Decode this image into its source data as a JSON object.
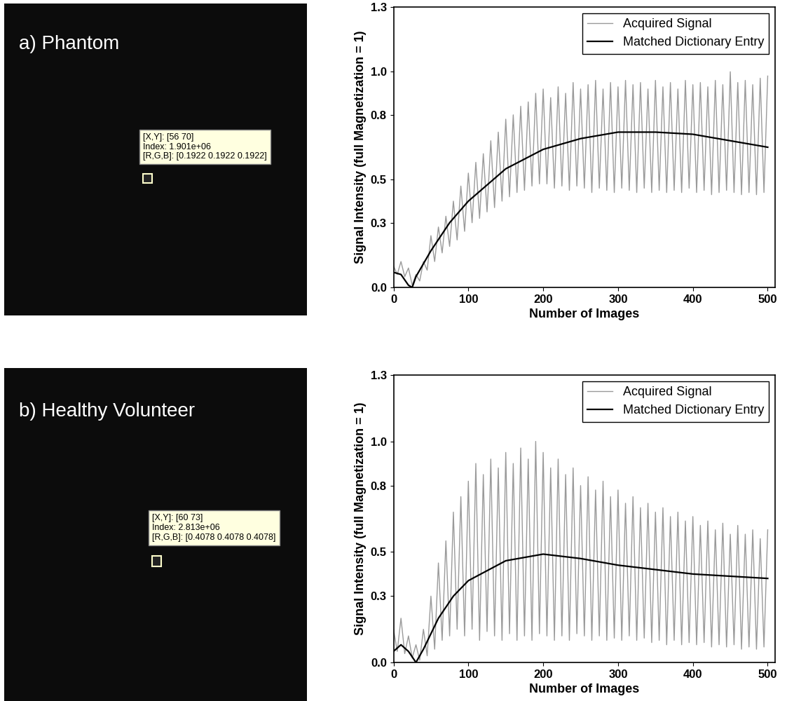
{
  "chart_data": [
    {
      "type": "image",
      "title": "a) Phantom",
      "annotations": [
        "[X,Y]: [56 70]",
        "Index: 1.901e+06",
        "[R,G,B]: [0.1922 0.1922 0.1922]"
      ]
    },
    {
      "type": "line",
      "x_label": "Number of Images",
      "y_label": "Signal Intensity (full Magnetization = 1)",
      "xlim": [
        0,
        510
      ],
      "xticks": [
        0,
        100,
        200,
        300,
        400,
        500
      ],
      "ylim": [
        0,
        1.3
      ],
      "yticks": [
        {
          "value": 0,
          "label": "0.0"
        },
        0.3,
        0.5,
        0.8,
        {
          "value": 1,
          "label": "1.0"
        },
        1.3
      ],
      "legend": "upper right",
      "series": [
        {
          "name": "Acquired Signal",
          "color": "#9a9a9a",
          "x": [
            0,
            5,
            10,
            15,
            20,
            25,
            30,
            35,
            40,
            45,
            50,
            55,
            60,
            65,
            70,
            75,
            80,
            85,
            90,
            95,
            100,
            105,
            110,
            115,
            120,
            125,
            130,
            135,
            140,
            145,
            150,
            155,
            160,
            165,
            170,
            175,
            180,
            185,
            190,
            195,
            200,
            205,
            210,
            215,
            220,
            225,
            230,
            235,
            240,
            245,
            250,
            255,
            260,
            265,
            270,
            275,
            280,
            285,
            290,
            295,
            300,
            305,
            310,
            315,
            320,
            325,
            330,
            335,
            340,
            345,
            350,
            355,
            360,
            365,
            370,
            375,
            380,
            385,
            390,
            395,
            400,
            405,
            410,
            415,
            420,
            425,
            430,
            435,
            440,
            445,
            450,
            455,
            460,
            465,
            470,
            475,
            480,
            485,
            490,
            495,
            500
          ],
          "values": [
            0.1,
            0.06,
            0.12,
            0.05,
            0.09,
            0.01,
            0.06,
            0.03,
            0.12,
            0.08,
            0.24,
            0.12,
            0.28,
            0.16,
            0.33,
            0.19,
            0.4,
            0.22,
            0.47,
            0.26,
            0.53,
            0.3,
            0.58,
            0.32,
            0.62,
            0.35,
            0.68,
            0.37,
            0.72,
            0.4,
            0.78,
            0.42,
            0.8,
            0.44,
            0.84,
            0.45,
            0.86,
            0.47,
            0.9,
            0.48,
            0.92,
            0.48,
            0.88,
            0.46,
            0.93,
            0.47,
            0.9,
            0.45,
            0.95,
            0.47,
            0.92,
            0.46,
            0.94,
            0.44,
            0.96,
            0.46,
            0.92,
            0.45,
            0.95,
            0.44,
            0.93,
            0.46,
            0.96,
            0.45,
            0.94,
            0.44,
            0.95,
            0.46,
            0.92,
            0.44,
            0.96,
            0.45,
            0.93,
            0.44,
            0.95,
            0.45,
            0.92,
            0.44,
            0.96,
            0.46,
            0.94,
            0.44,
            0.95,
            0.45,
            0.93,
            0.43,
            0.96,
            0.44,
            0.94,
            0.45,
            1.0,
            0.44,
            0.95,
            0.43,
            0.96,
            0.44,
            0.94,
            0.43,
            0.97,
            0.44,
            0.98
          ]
        },
        {
          "name": "Matched Dictionary Entry",
          "color": "#000000",
          "x": [
            0,
            10,
            20,
            25,
            30,
            50,
            75,
            100,
            150,
            200,
            250,
            300,
            350,
            400,
            450,
            500
          ],
          "values": [
            0.07,
            0.06,
            0.01,
            0.0,
            0.05,
            0.17,
            0.3,
            0.4,
            0.55,
            0.64,
            0.69,
            0.72,
            0.72,
            0.71,
            0.68,
            0.65
          ]
        }
      ]
    },
    {
      "type": "image",
      "title": "b) Healthy Volunteer",
      "annotations": [
        "[X,Y]: [60 73]",
        "Index: 2.813e+06",
        "[R,G,B]: [0.4078 0.4078 0.4078]"
      ]
    },
    {
      "type": "line",
      "x_label": "Number of Images",
      "y_label": "Signal Intensity (full Magnetization = 1)",
      "xlim": [
        0,
        510
      ],
      "xticks": [
        0,
        100,
        200,
        300,
        400,
        500
      ],
      "ylim": [
        0,
        1.3
      ],
      "yticks": [
        {
          "value": 0,
          "label": "0.0"
        },
        0.3,
        0.5,
        0.8,
        {
          "value": 1,
          "label": "1.0"
        },
        1.3
      ],
      "legend": "upper right",
      "series": [
        {
          "name": "Acquired Signal",
          "color": "#9a9a9a",
          "x": [
            0,
            5,
            10,
            15,
            20,
            25,
            30,
            35,
            40,
            45,
            50,
            55,
            60,
            65,
            70,
            75,
            80,
            85,
            90,
            95,
            100,
            105,
            110,
            115,
            120,
            125,
            130,
            135,
            140,
            145,
            150,
            155,
            160,
            165,
            170,
            175,
            180,
            185,
            190,
            195,
            200,
            205,
            210,
            215,
            220,
            225,
            230,
            235,
            240,
            245,
            250,
            255,
            260,
            265,
            270,
            275,
            280,
            285,
            290,
            295,
            300,
            305,
            310,
            315,
            320,
            325,
            330,
            335,
            340,
            345,
            350,
            355,
            360,
            365,
            370,
            375,
            380,
            385,
            390,
            395,
            400,
            405,
            410,
            415,
            420,
            425,
            430,
            435,
            440,
            445,
            450,
            455,
            460,
            465,
            470,
            475,
            480,
            485,
            490,
            495,
            500
          ],
          "values": [
            0.15,
            0.05,
            0.2,
            0.04,
            0.12,
            0.02,
            0.08,
            0.01,
            0.15,
            0.03,
            0.3,
            0.06,
            0.45,
            0.1,
            0.55,
            0.12,
            0.68,
            0.15,
            0.75,
            0.12,
            0.82,
            0.15,
            0.9,
            0.1,
            0.85,
            0.14,
            0.92,
            0.12,
            0.88,
            0.1,
            0.95,
            0.13,
            0.9,
            0.1,
            0.97,
            0.12,
            0.92,
            0.1,
            1.0,
            0.13,
            0.95,
            0.12,
            0.88,
            0.1,
            0.92,
            0.12,
            0.85,
            0.1,
            0.88,
            0.13,
            0.8,
            0.12,
            0.84,
            0.1,
            0.78,
            0.12,
            0.82,
            0.1,
            0.75,
            0.11,
            0.78,
            0.1,
            0.72,
            0.12,
            0.75,
            0.1,
            0.7,
            0.11,
            0.72,
            0.09,
            0.68,
            0.1,
            0.7,
            0.08,
            0.66,
            0.1,
            0.68,
            0.08,
            0.64,
            0.09,
            0.66,
            0.08,
            0.62,
            0.09,
            0.64,
            0.07,
            0.6,
            0.08,
            0.63,
            0.07,
            0.58,
            0.08,
            0.62,
            0.06,
            0.58,
            0.07,
            0.6,
            0.06,
            0.56,
            0.07,
            0.6
          ]
        },
        {
          "name": "Matched Dictionary Entry",
          "color": "#000000",
          "x": [
            0,
            10,
            20,
            30,
            40,
            60,
            80,
            100,
            150,
            200,
            250,
            300,
            350,
            400,
            450,
            500
          ],
          "values": [
            0.05,
            0.08,
            0.05,
            0.0,
            0.06,
            0.2,
            0.3,
            0.37,
            0.46,
            0.49,
            0.47,
            0.44,
            0.42,
            0.4,
            0.39,
            0.38
          ]
        }
      ]
    }
  ]
}
